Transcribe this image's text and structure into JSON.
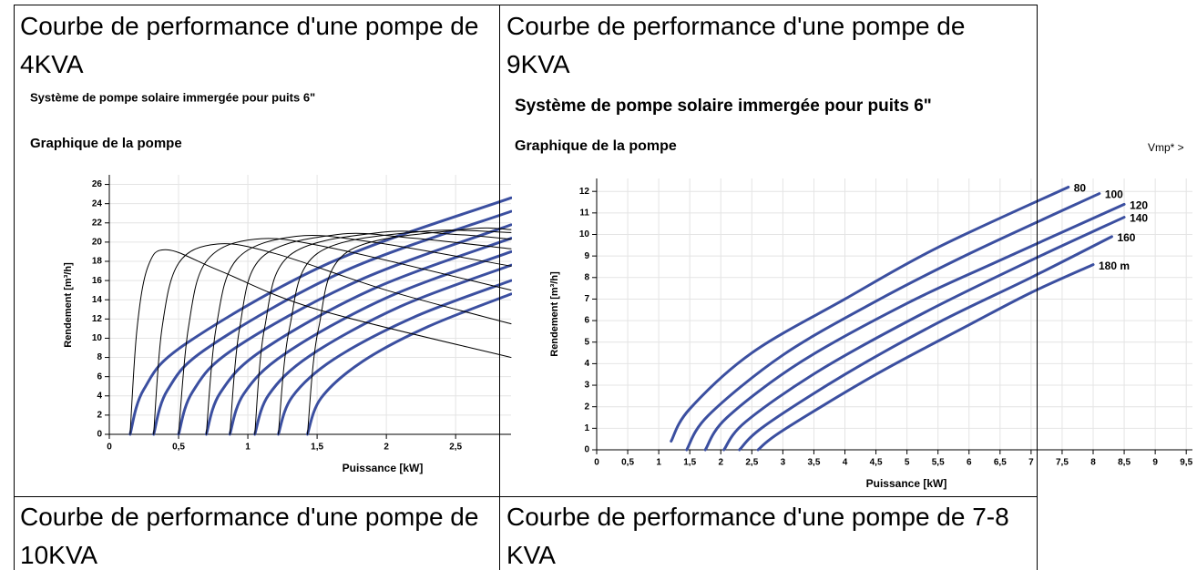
{
  "table": {
    "rows": [
      [
        {
          "text": "Courbe de performance d'une pompe de 4KVA",
          "chart": {
            "type": "line",
            "title": "Système de pompe solaire immergée pour puits 6\"",
            "subtitle": "Graphique de la pompe",
            "ylabel": "Rendement [m³/h]",
            "xlabel": "Puissance [kW]",
            "xlim": [
              0,
              2.9
            ],
            "ylim": [
              0,
              27
            ],
            "xticks": [
              0,
              {
                "value": 0.5,
                "label": "0,5"
              },
              1,
              {
                "value": 1.5,
                "label": "1,5"
              },
              2,
              {
                "value": 2.5,
                "label": "2,5"
              }
            ],
            "yticks": [
              0,
              2,
              4,
              6,
              8,
              10,
              12,
              14,
              16,
              18,
              20,
              22,
              24,
              26
            ],
            "grid": true,
            "series": [
              {
                "color": "#3b4fa0",
                "x": [
                  0.15,
                  0.25,
                  0.55,
                  1.6,
                  2.9
                ],
                "y": [
                  0,
                  4.7,
                  9.4,
                  17.9,
                  24.6
                ]
              },
              {
                "color": "#3b4fa0",
                "x": [
                  0.32,
                  0.42,
                  0.72,
                  1.7,
                  2.9
                ],
                "y": [
                  0,
                  4.6,
                  9.1,
                  17.0,
                  23.2
                ]
              },
              {
                "color": "#3b4fa0",
                "x": [
                  0.5,
                  0.6,
                  0.9,
                  1.8,
                  2.9
                ],
                "y": [
                  0,
                  4.4,
                  8.9,
                  16.0,
                  21.8
                ]
              },
              {
                "color": "#3b4fa0",
                "x": [
                  0.7,
                  0.8,
                  1.1,
                  1.9,
                  2.9
                ],
                "y": [
                  0,
                  4.3,
                  8.7,
                  15.1,
                  20.4
                ]
              },
              {
                "color": "#3b4fa0",
                "x": [
                  0.87,
                  0.97,
                  1.27,
                  2.0,
                  2.9
                ],
                "y": [
                  0,
                  4.2,
                  8.4,
                  14.2,
                  19.0
                ]
              },
              {
                "color": "#3b4fa0",
                "x": [
                  1.05,
                  1.15,
                  1.45,
                  2.1,
                  2.9
                ],
                "y": [
                  0,
                  4.1,
                  8.2,
                  13.3,
                  17.6
                ]
              },
              {
                "color": "#3b4fa0",
                "x": [
                  1.22,
                  1.32,
                  1.62,
                  2.2,
                  2.9
                ],
                "y": [
                  0,
                  3.9,
                  7.8,
                  12.2,
                  16.0
                ]
              },
              {
                "color": "#3b4fa0",
                "x": [
                  1.43,
                  1.53,
                  1.83,
                  2.3,
                  2.9
                ],
                "y": [
                  0,
                  3.8,
                  7.6,
                  11.2,
                  14.6
                ]
              },
              {
                "color": "#000000",
                "x": [
                  0.15,
                  0.2,
                  0.28,
                  0.42,
                  0.8,
                  1.5,
                  2.9
                ],
                "y": [
                  0,
                  11,
                  17.5,
                  19.2,
                  17,
                  13,
                  8
                ]
              },
              {
                "color": "#000000",
                "x": [
                  0.32,
                  0.38,
                  0.5,
                  0.78,
                  1.2,
                  2.0,
                  2.9
                ],
                "y": [
                  0,
                  11,
                  17.8,
                  19.8,
                  18.8,
                  15,
                  11.5
                ]
              },
              {
                "color": "#000000",
                "x": [
                  0.5,
                  0.57,
                  0.7,
                  1.05,
                  1.6,
                  2.9
                ],
                "y": [
                  0,
                  11,
                  18,
                  20.3,
                  19.4,
                  15.0
                ]
              },
              {
                "color": "#000000",
                "x": [
                  0.7,
                  0.77,
                  0.92,
                  1.35,
                  1.9,
                  2.9
                ],
                "y": [
                  0,
                  11,
                  18.2,
                  20.6,
                  20,
                  17.5
                ]
              },
              {
                "color": "#000000",
                "x": [
                  0.87,
                  0.94,
                  1.1,
                  1.65,
                  2.2,
                  2.9
                ],
                "y": [
                  0,
                  11,
                  18.4,
                  20.8,
                  20.4,
                  19.3
                ]
              },
              {
                "color": "#000000",
                "x": [
                  1.05,
                  1.12,
                  1.3,
                  1.95,
                  2.5,
                  2.9
                ],
                "y": [
                  0,
                  11,
                  18.6,
                  21,
                  20.8,
                  20.3
                ]
              },
              {
                "color": "#000000",
                "x": [
                  1.22,
                  1.3,
                  1.5,
                  2.25,
                  2.9
                ],
                "y": [
                  0,
                  11,
                  18.8,
                  21.1,
                  21.0
                ]
              },
              {
                "color": "#000000",
                "x": [
                  1.43,
                  1.51,
                  1.72,
                  2.55,
                  2.9
                ],
                "y": [
                  0,
                  11,
                  19,
                  21.3,
                  21.3
                ]
              }
            ]
          }
        },
        {
          "text": "Courbe de performance d'une pompe de 9KVA",
          "chart": {
            "type": "line",
            "title": "Système de pompe solaire immergée pour puits 6\"",
            "subtitle": "Graphique de la pompe",
            "note": "Vmp* >",
            "ylabel": "Rendement [m³/h]",
            "xlabel": "Puissance [kW]",
            "xlim": [
              0,
              9.6
            ],
            "ylim": [
              0,
              12.6
            ],
            "xticks": [
              0,
              {
                "value": 0.5,
                "label": "0,5"
              },
              1,
              {
                "value": 1.5,
                "label": "1,5"
              },
              2,
              {
                "value": 2.5,
                "label": "2,5"
              },
              3,
              {
                "value": 3.5,
                "label": "3,5"
              },
              4,
              {
                "value": 4.5,
                "label": "4,5"
              },
              5,
              {
                "value": 5.5,
                "label": "5,5"
              },
              6,
              {
                "value": 6.5,
                "label": "6,5"
              },
              7,
              {
                "value": 7.5,
                "label": "7,5"
              },
              8,
              {
                "value": 8.5,
                "label": "8,5"
              },
              9,
              {
                "value": 9.5,
                "label": "9,5"
              }
            ],
            "yticks": [
              0,
              1,
              2,
              3,
              4,
              5,
              6,
              7,
              8,
              9,
              10,
              11,
              12
            ],
            "grid": true,
            "series": [
              {
                "name": "80",
                "color": "#3b4fa0",
                "x": [
                  1.2,
                  1.5,
                  2.5,
                  4,
                  5.5,
                  7.6
                ],
                "y": [
                  0.4,
                  1.9,
                  4.5,
                  7.0,
                  9.4,
                  12.2
                ]
              },
              {
                "name": "100",
                "color": "#3b4fa0",
                "x": [
                  1.45,
                  1.8,
                  3,
                  4.5,
                  6,
                  8.1
                ],
                "y": [
                  0,
                  1.6,
                  4.4,
                  6.9,
                  9.1,
                  11.9
                ]
              },
              {
                "name": "120",
                "color": "#3b4fa0",
                "x": [
                  1.75,
                  2.1,
                  3.3,
                  5,
                  6.5,
                  8.5
                ],
                "y": [
                  0,
                  1.5,
                  4.1,
                  6.8,
                  8.8,
                  11.4
                ]
              },
              {
                "name": "140",
                "color": "#3b4fa0",
                "x": [
                  2.05,
                  2.4,
                  3.6,
                  5.3,
                  7,
                  8.5
                ],
                "y": [
                  0,
                  1.3,
                  3.7,
                  6.4,
                  8.8,
                  10.8
                ]
              },
              {
                "name": "160",
                "color": "#3b4fa0",
                "x": [
                  2.3,
                  2.7,
                  4,
                  5.5,
                  7,
                  8.3
                ],
                "y": [
                  0,
                  1.1,
                  3.5,
                  5.9,
                  8.0,
                  9.9
                ]
              },
              {
                "name": "180 m",
                "color": "#3b4fa0",
                "x": [
                  2.6,
                  3.0,
                  4.5,
                  6,
                  7,
                  8.0
                ],
                "y": [
                  0,
                  0.9,
                  3.5,
                  5.8,
                  7.3,
                  8.6
                ]
              }
            ]
          }
        }
      ],
      [
        {
          "text": "Courbe de performance d'une pompe de 10KVA"
        },
        {
          "text": "Courbe de performance d'une pompe de 7-8 KVA"
        }
      ]
    ]
  }
}
